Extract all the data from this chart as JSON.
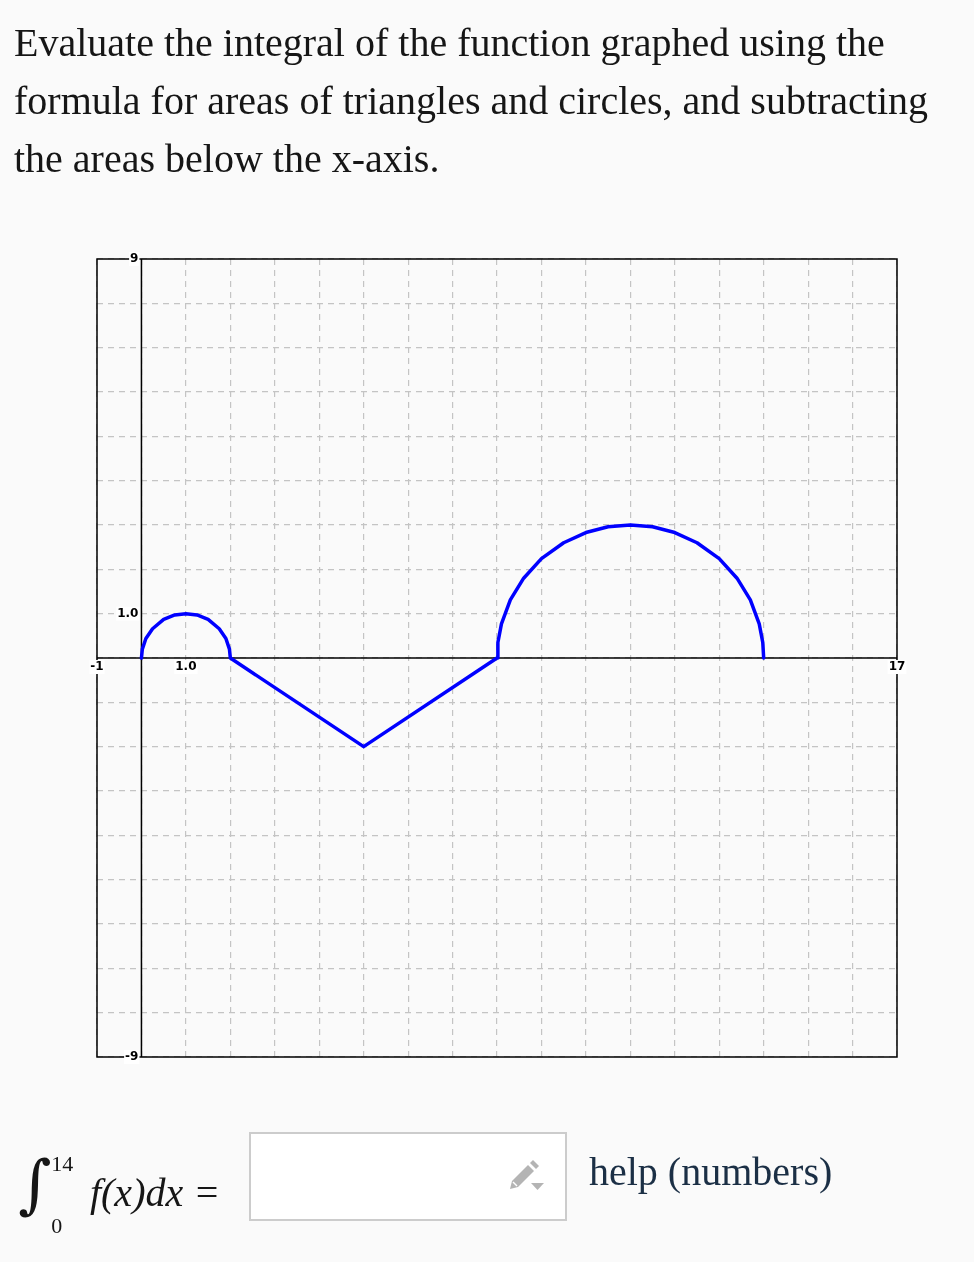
{
  "chart_data": {
    "type": "line",
    "title": "Evaluate the integral of the function graphed using the formula for areas of triangles and circles, and subtracting the areas below the x-axis.",
    "x": [
      0,
      0.02,
      0.1,
      0.25,
      0.5,
      0.75,
      1,
      1.25,
      1.5,
      1.75,
      1.9,
      1.98,
      2,
      5,
      8,
      8.02,
      8.1,
      8.3,
      8.6,
      9,
      9.5,
      10,
      10.5,
      11,
      11.5,
      12,
      12.5,
      13,
      13.4,
      13.7,
      13.9,
      13.98,
      14
    ],
    "series": [
      {
        "color": "#0000ff",
        "values": [
          0,
          0.2,
          0.44,
          0.66,
          0.87,
          0.97,
          1,
          0.97,
          0.87,
          0.66,
          0.44,
          0.2,
          0,
          -2,
          0,
          0.35,
          0.77,
          1.31,
          1.8,
          2.24,
          2.6,
          2.83,
          2.96,
          3,
          2.96,
          2.83,
          2.6,
          2.24,
          1.8,
          1.31,
          0.77,
          0.35,
          0
        ]
      }
    ],
    "xlim": [
      -1,
      17
    ],
    "ylim": [
      -9,
      9
    ],
    "xticks": [
      -1,
      {
        "value": 0,
        "label": null
      },
      {
        "value": 1,
        "label": "1.0"
      },
      {
        "value": 2,
        "label": null
      },
      {
        "value": 3,
        "label": null
      },
      {
        "value": 4,
        "label": null
      },
      {
        "value": 5,
        "label": null
      },
      {
        "value": 6,
        "label": null
      },
      {
        "value": 7,
        "label": null
      },
      {
        "value": 8,
        "label": null
      },
      {
        "value": 9,
        "label": null
      },
      {
        "value": 10,
        "label": null
      },
      {
        "value": 11,
        "label": null
      },
      {
        "value": 12,
        "label": null
      },
      {
        "value": 13,
        "label": null
      },
      {
        "value": 14,
        "label": null
      },
      {
        "value": 15,
        "label": null
      },
      {
        "value": 16,
        "label": null
      },
      17
    ],
    "yticks": [
      -9,
      {
        "value": -8,
        "label": null
      },
      {
        "value": -7,
        "label": null
      },
      {
        "value": -6,
        "label": null
      },
      {
        "value": -5,
        "label": null
      },
      {
        "value": -4,
        "label": null
      },
      {
        "value": -3,
        "label": null
      },
      {
        "value": -2,
        "label": null
      },
      {
        "value": -1,
        "label": null
      },
      {
        "value": 0,
        "label": null
      },
      {
        "value": 1,
        "label": "1.0"
      },
      {
        "value": 2,
        "label": null
      },
      {
        "value": 3,
        "label": null
      },
      {
        "value": 4,
        "label": null
      },
      {
        "value": 5,
        "label": null
      },
      {
        "value": 6,
        "label": null
      },
      {
        "value": 7,
        "label": null
      },
      {
        "value": 8,
        "label": null
      },
      9
    ],
    "grid": true,
    "marker": "none",
    "line_style": "solid",
    "annotations": [
      "∫$_{0}$$^{14}$ f(x)dx =",
      "help (numbers)"
    ]
  }
}
